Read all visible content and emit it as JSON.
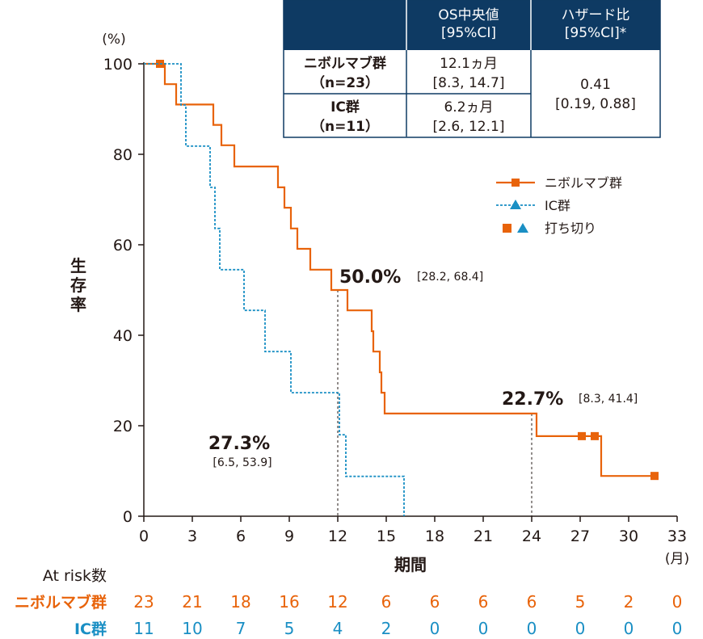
{
  "chart_data": {
    "type": "line",
    "subtype": "kaplan-meier",
    "ylabel": "生存率",
    "yunit": "(%)",
    "xlabel": "期間",
    "xunit": "(月)",
    "xlim": [
      0,
      33
    ],
    "ylim": [
      0,
      100
    ],
    "xticks": [
      0,
      3,
      6,
      9,
      12,
      15,
      18,
      21,
      24,
      27,
      30,
      33
    ],
    "yticks": [
      0,
      20,
      40,
      60,
      80,
      100
    ],
    "grid": false,
    "series": [
      {
        "name": "ニボルマブ群",
        "color": "#e8630a",
        "dash": false,
        "steps": [
          [
            0,
            100
          ],
          [
            1.3,
            100
          ],
          [
            1.3,
            95.5
          ],
          [
            2,
            95.5
          ],
          [
            2,
            91
          ],
          [
            4.3,
            91
          ],
          [
            4.3,
            86.5
          ],
          [
            4.8,
            86.5
          ],
          [
            4.8,
            82
          ],
          [
            5.6,
            82
          ],
          [
            5.6,
            77.3
          ],
          [
            8.3,
            77.3
          ],
          [
            8.3,
            72.7
          ],
          [
            8.7,
            72.7
          ],
          [
            8.7,
            68.2
          ],
          [
            9.1,
            68.2
          ],
          [
            9.1,
            63.6
          ],
          [
            9.5,
            63.6
          ],
          [
            9.5,
            59.1
          ],
          [
            10.3,
            59.1
          ],
          [
            10.3,
            54.5
          ],
          [
            11.6,
            54.5
          ],
          [
            11.6,
            50
          ],
          [
            12.6,
            50
          ],
          [
            12.6,
            45.5
          ],
          [
            14.1,
            45.5
          ],
          [
            14.1,
            40.9
          ],
          [
            14.2,
            40.9
          ],
          [
            14.2,
            36.4
          ],
          [
            14.6,
            36.4
          ],
          [
            14.6,
            31.8
          ],
          [
            14.7,
            31.8
          ],
          [
            14.7,
            27.3
          ],
          [
            14.9,
            27.3
          ],
          [
            14.9,
            22.7
          ],
          [
            24.3,
            22.7
          ],
          [
            24.3,
            17.7
          ],
          [
            28.3,
            17.7
          ],
          [
            28.3,
            8.9
          ],
          [
            31.6,
            8.9
          ]
        ],
        "censored": [
          [
            1,
            100
          ],
          [
            27.1,
            17.7
          ],
          [
            27.9,
            17.7
          ],
          [
            31.6,
            8.9
          ]
        ]
      },
      {
        "name": "IC群",
        "color": "#1a8fc4",
        "dash": true,
        "steps": [
          [
            0,
            100
          ],
          [
            2.3,
            100
          ],
          [
            2.3,
            90.9
          ],
          [
            2.6,
            90.9
          ],
          [
            2.6,
            81.8
          ],
          [
            4.1,
            81.8
          ],
          [
            4.1,
            72.7
          ],
          [
            4.4,
            72.7
          ],
          [
            4.4,
            63.6
          ],
          [
            4.7,
            63.6
          ],
          [
            4.7,
            54.5
          ],
          [
            6.2,
            54.5
          ],
          [
            6.2,
            45.5
          ],
          [
            7.5,
            45.5
          ],
          [
            7.5,
            36.4
          ],
          [
            9.1,
            36.4
          ],
          [
            9.1,
            27.3
          ],
          [
            12.1,
            27.3
          ],
          [
            12.1,
            18
          ],
          [
            12.5,
            18
          ],
          [
            12.5,
            8.8
          ],
          [
            16.1,
            8.8
          ],
          [
            16.1,
            0
          ]
        ],
        "censored": []
      }
    ],
    "annotations": [
      {
        "value": "50.0%",
        "ci": "[28.2, 68.4]",
        "x": 12,
        "y": 50
      },
      {
        "value": "22.7%",
        "ci": "[8.3, 41.4]",
        "x": 24,
        "y": 22.7
      },
      {
        "value": "27.3%",
        "ci": "[6.5, 53.9]",
        "x": 12,
        "y": 27.3
      }
    ],
    "legend": {
      "position": "right",
      "items": [
        {
          "label": "ニボルマブ群"
        },
        {
          "label": "IC群"
        },
        {
          "label": "打ち切り"
        }
      ]
    },
    "summary_table": {
      "header_fill": "#0e3a63",
      "headers": [
        "",
        "OS中央値\n[95%CI]",
        "ハザード比\n[95%CI]*"
      ],
      "rows": [
        {
          "group": "ニボルマブ群\n（n=23）",
          "median": "12.1ヵ月\n[8.3, 14.7]"
        },
        {
          "group": "IC群\n（n=11）",
          "median": "6.2ヵ月\n[2.6, 12.1]"
        }
      ],
      "hazard_ratio": "0.41\n[0.19, 0.88]"
    },
    "at_risk": {
      "title": "At risk数",
      "rows": [
        {
          "name": "ニボルマブ群",
          "color": "#e8630a",
          "values": [
            23,
            21,
            18,
            16,
            12,
            6,
            6,
            6,
            6,
            5,
            2,
            0
          ]
        },
        {
          "name": "IC群",
          "color": "#1a8fc4",
          "values": [
            11,
            10,
            7,
            5,
            4,
            2,
            0,
            0,
            0,
            0,
            0,
            0
          ]
        }
      ]
    }
  }
}
